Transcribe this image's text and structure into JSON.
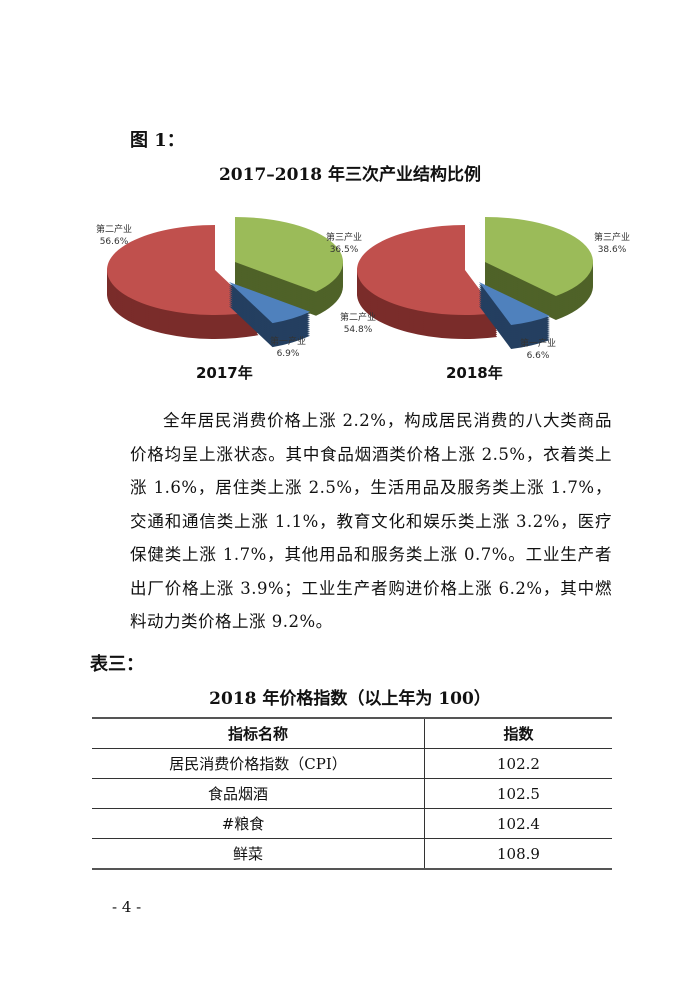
{
  "figure_label": "图 1：",
  "chart_title": "2017–2018 年三次产业结构比例",
  "chart_data": [
    {
      "type": "pie",
      "title": "2017年",
      "categories": [
        "第三产业",
        "第一产业",
        "第二产业"
      ],
      "values": [
        36.5,
        6.9,
        56.6
      ],
      "value_labels": [
        "36.5%",
        "6.9%",
        "56.6%"
      ],
      "colors": [
        "#9bbb59",
        "#4f81bd",
        "#c0504d"
      ],
      "side_colors": [
        "#4f6228",
        "#243f60",
        "#7a2c2a"
      ],
      "style": "3d-exploded"
    },
    {
      "type": "pie",
      "title": "2018年",
      "categories": [
        "第三产业",
        "第一产业",
        "第二产业"
      ],
      "values": [
        38.6,
        6.6,
        54.8
      ],
      "value_labels": [
        "38.6%",
        "6.6%",
        "54.8%"
      ],
      "colors": [
        "#9bbb59",
        "#4f81bd",
        "#c0504d"
      ],
      "side_colors": [
        "#4f6228",
        "#243f60",
        "#7a2c2a"
      ],
      "style": "3d-exploded"
    }
  ],
  "paragraph": "全年居民消费价格上涨 2.2%，构成居民消费的八大类商品价格均呈上涨状态。其中食品烟酒类价格上涨 2.5%，衣着类上涨 1.6%，居住类上涨 2.5%，生活用品及服务类上涨 1.7%，交通和通信类上涨 1.1%，教育文化和娱乐类上涨 3.2%，医疗保健类上涨 1.7%，其他用品和服务类上涨 0.7%。工业生产者出厂价格上涨 3.9%；工业生产者购进价格上涨 6.2%，其中燃料动力类价格上涨 9.2%。",
  "table_label": "表三：",
  "table_title": "2018 年价格指数（以上年为 100）",
  "table": {
    "headers": [
      "指标名称",
      "指数"
    ],
    "rows": [
      [
        "居民消费价格指数（CPI）",
        "102.2"
      ],
      [
        "食品烟酒",
        "102.5"
      ],
      [
        "#粮食",
        "102.4"
      ],
      [
        "鲜菜",
        "108.9"
      ]
    ]
  },
  "page_number": "- 4 -"
}
